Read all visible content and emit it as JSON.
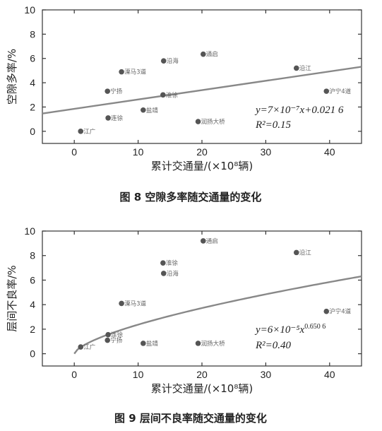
{
  "chart_data": [
    {
      "type": "scatter",
      "caption": "图 8   空隙多率随交通量的变化",
      "xlabel": "累计交通量/(×10⁸辆)",
      "ylabel": "空隙多率/%",
      "xlim": [
        -5,
        45
      ],
      "ylim": [
        -1,
        10
      ],
      "xticks": [
        0,
        10,
        20,
        30,
        40
      ],
      "yticks": [
        0,
        2,
        4,
        6,
        8,
        10
      ],
      "equation_line1": "y=7×10⁻⁷x+0.021 6",
      "equation_line2": "R²=0.15",
      "trend": {
        "form": "linear",
        "slope": 0.077,
        "intercept": 1.85
      },
      "points": [
        {
          "name": "江广",
          "x": 1.0,
          "y": 0.0
        },
        {
          "name": "连徐",
          "x": 5.3,
          "y": 1.1
        },
        {
          "name": "宁扬",
          "x": 5.2,
          "y": 3.3
        },
        {
          "name": "溧马3道",
          "x": 7.4,
          "y": 4.9
        },
        {
          "name": "盐靖",
          "x": 10.8,
          "y": 1.75
        },
        {
          "name": "淮徐",
          "x": 13.9,
          "y": 3.0
        },
        {
          "name": "沿海",
          "x": 14.0,
          "y": 5.8
        },
        {
          "name": "润扬大桥",
          "x": 19.4,
          "y": 0.8
        },
        {
          "name": "通启",
          "x": 20.2,
          "y": 6.35
        },
        {
          "name": "沿江",
          "x": 34.8,
          "y": 5.2
        },
        {
          "name": "沪宁4道",
          "x": 39.5,
          "y": 3.3
        }
      ]
    },
    {
      "type": "scatter",
      "caption": "图 9   层间不良率随交通量的变化",
      "xlabel": "累计交通量/(×10⁸辆)",
      "ylabel": "层间不良率/%",
      "xlim": [
        -5,
        45
      ],
      "ylim": [
        -1,
        10
      ],
      "xticks": [
        0,
        10,
        20,
        30,
        40
      ],
      "yticks": [
        0,
        2,
        4,
        6,
        8,
        10
      ],
      "equation_line1": "y=6×10⁻⁵x",
      "equation_exponent": "0.650 6",
      "equation_line2": "R²=0.40",
      "trend": {
        "form": "power",
        "coef": 0.53,
        "exponent": 0.6506
      },
      "points": [
        {
          "name": "江广",
          "x": 1.0,
          "y": 0.55
        },
        {
          "name": "连徐",
          "x": 5.3,
          "y": 1.55
        },
        {
          "name": "宁扬",
          "x": 5.2,
          "y": 1.1
        },
        {
          "name": "溧马3道",
          "x": 7.4,
          "y": 4.1
        },
        {
          "name": "盐靖",
          "x": 10.8,
          "y": 0.85
        },
        {
          "name": "淮徐",
          "x": 13.9,
          "y": 7.4
        },
        {
          "name": "沿海",
          "x": 14.0,
          "y": 6.55
        },
        {
          "name": "润扬大桥",
          "x": 19.4,
          "y": 0.85
        },
        {
          "name": "通启",
          "x": 20.2,
          "y": 9.2
        },
        {
          "name": "沿江",
          "x": 34.8,
          "y": 8.25
        },
        {
          "name": "沪宁4道",
          "x": 39.5,
          "y": 3.45
        }
      ]
    }
  ]
}
